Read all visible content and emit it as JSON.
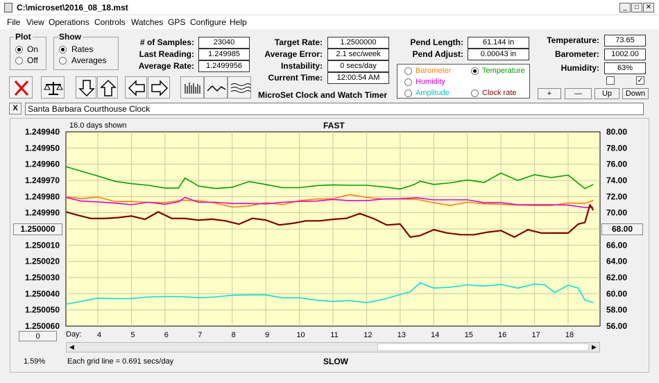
{
  "window": {
    "title": "C:\\microset\\2016_08_18.mst",
    "min": "_",
    "max": "□",
    "close": "✕"
  },
  "menu": [
    "File",
    "View",
    "Operations",
    "Controls",
    "Watches",
    "GPS",
    "Configure",
    "Help"
  ],
  "plot_group": {
    "title": "Plot",
    "options": [
      "On",
      "Off"
    ],
    "selected": "On"
  },
  "show_group": {
    "title": "Show",
    "options": [
      "Rates",
      "Averages"
    ],
    "selected": "Rates"
  },
  "stats": {
    "samples_label": "# of Samples:",
    "samples": "23040",
    "last_reading_label": "Last Reading:",
    "last_reading": "1.249985",
    "average_rate_label": "Average Rate:",
    "average_rate": "1.2499956",
    "target_rate_label": "Target Rate:",
    "target_rate": "1.2500000",
    "average_error_label": "Average Error:",
    "average_error": "2.1 sec/week",
    "instability_label": "Instability:",
    "instability": "0 secs/day",
    "current_time_label": "Current Time:",
    "current_time": "12:00:54 AM",
    "pend_length_label": "Pend Length:",
    "pend_length": "61.144 in",
    "pend_adjust_label": "Pend Adjust:",
    "pend_adjust": "0.00043 in",
    "temperature_label": "Temperature:",
    "temperature": "73.65",
    "barometer_label": "Barometer:",
    "barometer": "1002.00",
    "humidity_label": "Humidity:",
    "humidity": "63%"
  },
  "app_caption": "MicroSet Clock and Watch Timer",
  "sensor_options": [
    {
      "label": "Barometer",
      "color": "#ff8000",
      "selected": false
    },
    {
      "label": "Temperature",
      "color": "#00a000",
      "selected": true
    },
    {
      "label": "Humidity",
      "color": "#e000e0",
      "selected": false
    },
    {
      "label": "Amplitude",
      "color": "#00c0c0",
      "selected": false
    },
    {
      "label": "Clock rate",
      "color": "#800000",
      "selected": false
    }
  ],
  "scale_buttons": {
    "plus": "+",
    "minus": "—",
    "up": "Up",
    "down": "Down"
  },
  "checkbox_right": "✓",
  "clock_name": "Santa Barbara Courthouse Clock",
  "clear_label": "X",
  "plot": {
    "days_shown": "16.0 days shown",
    "top_label": "FAST",
    "bottom_label": "SLOW",
    "grid_note": "Each grid line = 0.691 secs/day",
    "left_button": "1.250000",
    "right_button": "68.00",
    "bottom_left_button": "0",
    "percent": "1.59%",
    "day_label": "Day:"
  },
  "chart_data": {
    "type": "line",
    "x_label": "Day:",
    "x_ticks": [
      4,
      5,
      6,
      7,
      8,
      9,
      10,
      11,
      12,
      13,
      14,
      15,
      16,
      17,
      18
    ],
    "xlim": [
      3.05,
      18.95
    ],
    "left_axis": {
      "ticks": [
        "1.249940",
        "1.249950",
        "1.249960",
        "1.249970",
        "1.249980",
        "1.249990",
        "1.250000",
        "1.250010",
        "1.250020",
        "1.250030",
        "1.250040",
        "1.250050",
        "1.250060"
      ],
      "ylim": [
        1.24994,
        1.25006
      ],
      "inverted": true
    },
    "right_axis": {
      "ticks": [
        "80.00",
        "78.00",
        "76.00",
        "74.00",
        "72.00",
        "70.00",
        "68.00",
        "66.00",
        "64.00",
        "62.00",
        "60.00",
        "58.00",
        "56.00"
      ],
      "ylim": [
        56,
        80
      ]
    },
    "grid": true,
    "background": "#ffffc8",
    "series": [
      {
        "name": "Temperature",
        "color": "#00a000",
        "axis": "right",
        "x": [
          3.05,
          3.5,
          4,
          4.5,
          5,
          5.5,
          6,
          6.4,
          6.6,
          7,
          7.5,
          8,
          8.5,
          9,
          9.5,
          10,
          10.5,
          11,
          11.5,
          12,
          12.5,
          13,
          13.4,
          13.6,
          14,
          14.5,
          15,
          15.5,
          16,
          16.5,
          17,
          17.5,
          18,
          18.5,
          18.75
        ],
        "y": [
          75.6,
          75.2,
          74.5,
          74.0,
          73.6,
          73.3,
          73.1,
          73.0,
          74.4,
          73.3,
          72.9,
          73.2,
          73.8,
          73.6,
          73.1,
          73.0,
          73.4,
          73.4,
          73.5,
          73.4,
          73.1,
          73.0,
          73.4,
          74.0,
          73.5,
          73.6,
          74.1,
          73.7,
          75.0,
          74.0,
          74.6,
          74.4,
          74.6,
          73.1,
          73.5
        ]
      },
      {
        "name": "Barometer",
        "color": "#ff8000",
        "axis": "right",
        "x": [
          3.05,
          3.5,
          4,
          4.5,
          5,
          5.5,
          6,
          6.5,
          7,
          7.5,
          8,
          8.5,
          9,
          9.5,
          10,
          10.5,
          11,
          11.5,
          12,
          12.5,
          13,
          13.5,
          14,
          14.5,
          15,
          15.5,
          16,
          16.5,
          17,
          17.5,
          18,
          18.5,
          18.75
        ],
        "y": [
          71.9,
          71.8,
          71.9,
          71.5,
          71.4,
          71.2,
          71.3,
          71.5,
          71.6,
          71.2,
          70.6,
          70.9,
          71.2,
          71.1,
          71.5,
          71.6,
          71.8,
          72.2,
          72.0,
          71.7,
          71.6,
          71.7,
          71.2,
          71.0,
          71.3,
          71.0,
          71.1,
          70.9,
          71.0,
          70.9,
          71.1,
          71.2,
          71.5
        ]
      },
      {
        "name": "Humidity",
        "color": "#e000e0",
        "axis": "right",
        "x": [
          3.05,
          3.5,
          4,
          4.5,
          5,
          5.5,
          6,
          6.4,
          6.6,
          7,
          7.5,
          8,
          8.5,
          9,
          9.5,
          10,
          10.5,
          11,
          11.5,
          12,
          12.5,
          13,
          13.5,
          14,
          14.5,
          15,
          15.5,
          16,
          16.5,
          17,
          17.5,
          18,
          18.5,
          18.75
        ],
        "y": [
          71.8,
          71.5,
          71.3,
          71.3,
          71.0,
          71.2,
          71.1,
          71.3,
          72.0,
          71.3,
          71.2,
          71.2,
          71.1,
          71.2,
          71.3,
          71.3,
          71.5,
          71.6,
          71.6,
          71.5,
          71.6,
          71.8,
          71.8,
          71.7,
          71.6,
          71.5,
          71.3,
          71.2,
          71.1,
          71.0,
          70.9,
          71.0,
          70.6,
          70.8
        ]
      },
      {
        "name": "Clock rate",
        "color": "#800000",
        "axis": "left",
        "x": [
          3.05,
          3.4,
          3.8,
          4.2,
          4.6,
          5,
          5.4,
          5.8,
          6.2,
          6.6,
          7,
          7.4,
          7.8,
          8.2,
          8.6,
          9,
          9.4,
          9.8,
          10.2,
          10.6,
          11,
          11.4,
          11.8,
          12.2,
          12.6,
          13,
          13.3,
          13.6,
          14,
          14.4,
          14.8,
          15.2,
          15.6,
          16,
          16.4,
          16.8,
          17.2,
          17.6,
          18,
          18.3,
          18.5,
          18.65,
          18.75
        ],
        "y": [
          1.249991,
          1.249992,
          1.249993,
          1.249992,
          1.249994,
          1.249992,
          1.249993,
          1.249991,
          1.249994,
          1.249993,
          1.249993,
          1.249995,
          1.249995,
          1.249996,
          1.249995,
          1.249995,
          1.249997,
          1.249995,
          1.249996,
          1.249995,
          1.249993,
          1.249995,
          1.249991,
          1.249993,
          1.249996,
          1.249998,
          1.250005,
          1.250003,
          1.250002,
          1.250003,
          1.250003,
          1.250002,
          1.250003,
          1.250001,
          1.250004,
          1.250002,
          1.250003,
          1.250002,
          1.250001,
          1.249998,
          1.249996,
          1.249984,
          1.24999
        ]
      },
      {
        "name": "Amplitude",
        "color": "#00e0e0",
        "axis": "right",
        "x": [
          3.05,
          3.5,
          4,
          4.5,
          5,
          5.5,
          6,
          6.5,
          7,
          7.5,
          8,
          8.5,
          9,
          9.5,
          10,
          10.5,
          11,
          11.5,
          12,
          12.5,
          13,
          13.3,
          13.6,
          14,
          14.5,
          15,
          15.5,
          16,
          16.5,
          17,
          17.3,
          17.6,
          18,
          18.3,
          18.5,
          18.75
        ],
        "y": [
          58.6,
          59.1,
          59.4,
          59.5,
          59.4,
          59.5,
          59.7,
          59.6,
          59.6,
          59.6,
          59.7,
          59.9,
          59.8,
          59.6,
          59.5,
          59.1,
          59.1,
          59.1,
          59.0,
          59.3,
          59.8,
          60.3,
          61.3,
          60.8,
          60.8,
          61.0,
          61.0,
          61.1,
          60.8,
          61.2,
          61.0,
          60.2,
          61.0,
          60.8,
          59.2,
          58.8
        ]
      }
    ]
  }
}
